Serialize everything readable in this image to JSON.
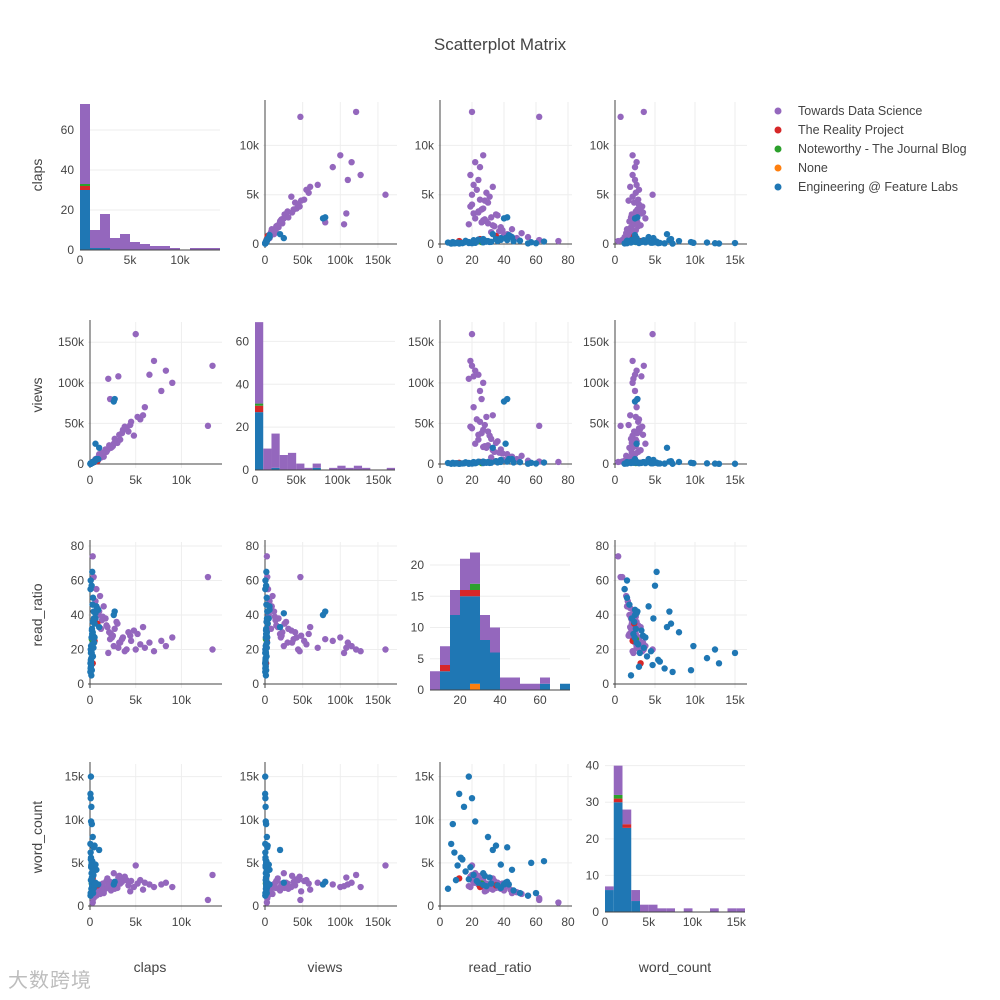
{
  "chart_data": {
    "type": "scatter",
    "title": "Scatterplot Matrix",
    "variables": [
      "claps",
      "views",
      "read_ratio",
      "word_count"
    ],
    "legend_position": "top-right",
    "series": [
      {
        "name": "Towards Data Science",
        "color": "#9467bd"
      },
      {
        "name": "The Reality Project",
        "color": "#d62728"
      },
      {
        "name": "Noteworthy - The Journal Blog",
        "color": "#2ca02c"
      },
      {
        "name": "None",
        "color": "#ff7f0e"
      },
      {
        "name": "Engineering @ Feature Labs",
        "color": "#1f77b4"
      }
    ],
    "axes": {
      "claps": {
        "range": [
          0,
          14000
        ],
        "ticks": [
          0,
          5000,
          10000
        ],
        "tick_labels": [
          "0",
          "5k",
          "10k"
        ]
      },
      "views": {
        "range": [
          0,
          170000
        ],
        "ticks": [
          0,
          50000,
          100000,
          150000
        ],
        "tick_labels": [
          "0",
          "50k",
          "100k",
          "150k"
        ]
      },
      "read_ratio": {
        "range": [
          0,
          80
        ],
        "ticks": [
          0,
          20,
          40,
          60,
          80
        ],
        "tick_labels": [
          "0",
          "20",
          "40",
          "60",
          "80"
        ]
      },
      "word_count": {
        "range": [
          0,
          16000
        ],
        "ticks": [
          0,
          5000,
          10000,
          15000
        ],
        "tick_labels": [
          "0",
          "5k",
          "10k",
          "15k"
        ]
      }
    },
    "histograms": {
      "claps": {
        "ylim": [
          0,
          75
        ],
        "yticks": [
          0,
          20,
          40,
          60
        ],
        "bin_edges": [
          0,
          1000,
          2000,
          3000,
          4000,
          5000,
          6000,
          7000,
          8000,
          9000,
          10000,
          11000,
          12000,
          13000,
          14000
        ],
        "stacks": [
          [
            40,
            2,
            1,
            0,
            30
          ],
          [
            9,
            0,
            0,
            0,
            1
          ],
          [
            17,
            0,
            0,
            0,
            1
          ],
          [
            6,
            0,
            0,
            0,
            0
          ],
          [
            8,
            0,
            0,
            0,
            0
          ],
          [
            4,
            0,
            0,
            0,
            0
          ],
          [
            3,
            0,
            0,
            0,
            0
          ],
          [
            2,
            0,
            0,
            0,
            0
          ],
          [
            2,
            0,
            0,
            0,
            0
          ],
          [
            1,
            0,
            0,
            0,
            0
          ],
          [
            0,
            0,
            0,
            0,
            0
          ],
          [
            1,
            0,
            0,
            0,
            0
          ],
          [
            1,
            0,
            0,
            0,
            0
          ],
          [
            1,
            0,
            0,
            0,
            0
          ]
        ]
      },
      "views": {
        "ylim": [
          0,
          70
        ],
        "yticks": [
          0,
          20,
          40,
          60
        ],
        "bin_edges": [
          0,
          10000,
          20000,
          30000,
          40000,
          50000,
          60000,
          70000,
          80000,
          90000,
          100000,
          110000,
          120000,
          130000,
          140000,
          150000,
          160000,
          170000
        ],
        "stacks": [
          [
            38,
            3,
            1,
            0,
            27
          ],
          [
            10,
            0,
            0,
            0,
            0
          ],
          [
            16,
            0,
            0,
            0,
            1
          ],
          [
            7,
            0,
            0,
            0,
            0
          ],
          [
            8,
            0,
            0,
            0,
            0
          ],
          [
            3,
            0,
            0,
            0,
            0
          ],
          [
            1,
            0,
            0,
            0,
            0
          ],
          [
            2,
            0,
            0,
            0,
            1
          ],
          [
            0,
            0,
            0,
            0,
            0
          ],
          [
            1,
            0,
            0,
            0,
            0
          ],
          [
            2,
            0,
            0,
            0,
            0
          ],
          [
            1,
            0,
            0,
            0,
            0
          ],
          [
            2,
            0,
            0,
            0,
            0
          ],
          [
            1,
            0,
            0,
            0,
            0
          ],
          [
            0,
            0,
            0,
            0,
            0
          ],
          [
            0,
            0,
            0,
            0,
            0
          ],
          [
            1,
            0,
            0,
            0,
            0
          ]
        ]
      },
      "read_ratio": {
        "ylim": [
          0,
          24
        ],
        "yticks": [
          0,
          5,
          10,
          15,
          20
        ],
        "bin_edges": [
          5,
          10,
          15,
          20,
          25,
          30,
          35,
          40,
          45,
          50,
          55,
          60,
          65,
          70,
          75
        ],
        "stacks": [
          [
            3,
            0,
            0,
            0,
            0
          ],
          [
            3,
            1,
            0,
            0,
            3
          ],
          [
            4,
            0,
            0,
            0,
            12
          ],
          [
            5,
            1,
            0,
            0,
            15
          ],
          [
            5,
            1,
            1,
            1,
            14
          ],
          [
            4,
            0,
            0,
            0,
            8
          ],
          [
            4,
            0,
            0,
            0,
            6
          ],
          [
            2,
            0,
            0,
            0,
            0
          ],
          [
            2,
            0,
            0,
            0,
            0
          ],
          [
            1,
            0,
            0,
            0,
            0
          ],
          [
            1,
            0,
            0,
            0,
            0
          ],
          [
            1,
            0,
            0,
            0,
            1
          ],
          [
            0,
            0,
            0,
            0,
            0
          ],
          [
            0,
            0,
            0,
            0,
            1
          ]
        ]
      },
      "word_count": {
        "ylim": [
          0,
          41
        ],
        "yticks": [
          0,
          10,
          20,
          30,
          40
        ],
        "bin_edges": [
          0,
          1000,
          2000,
          3000,
          4000,
          5000,
          6000,
          7000,
          8000,
          9000,
          10000,
          11000,
          12000,
          13000,
          14000,
          15000,
          16000
        ],
        "stacks": [
          [
            1,
            0,
            0,
            0,
            6
          ],
          [
            8,
            1,
            1,
            0,
            30
          ],
          [
            4,
            1,
            0,
            0,
            23
          ],
          [
            3,
            0,
            0,
            0,
            3
          ],
          [
            2,
            0,
            0,
            0,
            0
          ],
          [
            2,
            0,
            0,
            0,
            0
          ],
          [
            1,
            0,
            0,
            0,
            0
          ],
          [
            1,
            0,
            0,
            0,
            0
          ],
          [
            0,
            0,
            0,
            0,
            0
          ],
          [
            1,
            0,
            0,
            0,
            0
          ],
          [
            0,
            0,
            0,
            0,
            0
          ],
          [
            0,
            0,
            0,
            0,
            0
          ],
          [
            1,
            0,
            0,
            0,
            0
          ],
          [
            0,
            0,
            0,
            0,
            0
          ],
          [
            1,
            0,
            0,
            0,
            0
          ],
          [
            1,
            0,
            0,
            0,
            0
          ]
        ]
      }
    },
    "points": [
      [
        1200,
        8000,
        32,
        2400,
        0
      ],
      [
        900,
        5000,
        40,
        1800,
        0
      ],
      [
        2500,
        22000,
        28,
        2600,
        0
      ],
      [
        3000,
        26000,
        35,
        2100,
        0
      ],
      [
        4500,
        52000,
        25,
        2900,
        0
      ],
      [
        5000,
        160000,
        20,
        4700,
        0
      ],
      [
        13400,
        121000,
        20,
        3600,
        0
      ],
      [
        12900,
        47000,
        62,
        700,
        0
      ],
      [
        8300,
        115000,
        22,
        2700,
        0
      ],
      [
        7000,
        127000,
        19,
        2200,
        0
      ],
      [
        6500,
        110000,
        24,
        2500,
        0
      ],
      [
        2000,
        105000,
        18,
        2300,
        0
      ],
      [
        3100,
        108000,
        21,
        3300,
        0
      ],
      [
        2200,
        80000,
        26,
        2800,
        0
      ],
      [
        5800,
        60000,
        33,
        1900,
        0
      ],
      [
        4200,
        40000,
        30,
        2400,
        0
      ],
      [
        3600,
        42000,
        27,
        3100,
        0
      ],
      [
        4800,
        35000,
        31,
        2200,
        0
      ],
      [
        2900,
        28000,
        36,
        2700,
        0
      ],
      [
        1700,
        18000,
        38,
        2000,
        0
      ],
      [
        2300,
        20000,
        29,
        1800,
        0
      ],
      [
        3300,
        30000,
        24,
        2600,
        0
      ],
      [
        1500,
        9000,
        45,
        1500,
        0
      ],
      [
        700,
        4000,
        55,
        1200,
        0
      ],
      [
        400,
        3000,
        62,
        900,
        0
      ],
      [
        300,
        2500,
        74,
        400,
        0
      ],
      [
        1000,
        12000,
        42,
        2300,
        0
      ],
      [
        1800,
        15000,
        34,
        2900,
        0
      ],
      [
        2600,
        25000,
        22,
        3800,
        0
      ],
      [
        3800,
        46000,
        19,
        3400,
        0
      ],
      [
        5500,
        55000,
        23,
        3000,
        0
      ],
      [
        6000,
        70000,
        21,
        2700,
        0
      ],
      [
        600,
        6000,
        48,
        1600,
        0
      ],
      [
        1300,
        14000,
        37,
        2100,
        0
      ],
      [
        2100,
        23000,
        30,
        2500,
        0
      ],
      [
        3500,
        38000,
        26,
        2800,
        0
      ],
      [
        4400,
        48000,
        28,
        1700,
        0
      ],
      [
        7800,
        90000,
        25,
        2500,
        0
      ],
      [
        9000,
        100000,
        27,
        2200,
        0
      ],
      [
        1100,
        10000,
        51,
        1400,
        0
      ],
      [
        1900,
        17000,
        33,
        3200,
        0
      ],
      [
        2700,
        31000,
        32,
        2000,
        0
      ],
      [
        3200,
        36000,
        24,
        3500,
        0
      ],
      [
        800,
        7000,
        44,
        1900,
        0
      ],
      [
        1400,
        13000,
        39,
        2600,
        0
      ],
      [
        2400,
        21000,
        27,
        2300,
        0
      ],
      [
        4000,
        44000,
        20,
        3000,
        0
      ],
      [
        5200,
        58000,
        29,
        2600,
        0
      ],
      [
        300,
        1500,
        12,
        3200,
        1
      ],
      [
        500,
        2500,
        25,
        2200,
        1
      ],
      [
        800,
        3500,
        35,
        2400,
        1
      ],
      [
        200,
        1200,
        26,
        2600,
        2
      ],
      [
        2700,
        80000,
        42,
        2800,
        4
      ],
      [
        2600,
        77000,
        40,
        2500,
        4
      ],
      [
        1000,
        20000,
        33,
        6500,
        4
      ],
      [
        100,
        300,
        18,
        15000,
        4
      ],
      [
        50,
        200,
        12,
        13000,
        4
      ],
      [
        80,
        500,
        20,
        12500,
        4
      ],
      [
        150,
        800,
        15,
        11500,
        4
      ],
      [
        120,
        1000,
        22,
        9800,
        4
      ],
      [
        200,
        1500,
        8,
        9500,
        4
      ],
      [
        300,
        2500,
        30,
        8000,
        4
      ],
      [
        500,
        3500,
        35,
        7000,
        4
      ],
      [
        400,
        3000,
        42,
        6800,
        4
      ],
      [
        250,
        1800,
        65,
        5200,
        4
      ],
      [
        180,
        1500,
        57,
        5000,
        4
      ],
      [
        600,
        5000,
        38,
        4800,
        4
      ],
      [
        700,
        6000,
        45,
        4200,
        4
      ],
      [
        350,
        2200,
        28,
        3500,
        4
      ],
      [
        100,
        1000,
        10,
        3000,
        4
      ],
      [
        150,
        1200,
        5,
        2000,
        4
      ],
      [
        80,
        600,
        60,
        1500,
        4
      ],
      [
        60,
        400,
        55,
        1200,
        4
      ],
      [
        220,
        1600,
        32,
        2600,
        4
      ],
      [
        300,
        2000,
        36,
        2400,
        4
      ],
      [
        450,
        2800,
        24,
        2700,
        4
      ],
      [
        90,
        700,
        14,
        5400,
        4
      ],
      [
        130,
        900,
        19,
        4500,
        4
      ],
      [
        170,
        1100,
        27,
        3800,
        4
      ],
      [
        210,
        1400,
        31,
        3300,
        4
      ],
      [
        260,
        1700,
        23,
        2900,
        4
      ],
      [
        320,
        2100,
        16,
        4000,
        4
      ],
      [
        380,
        2400,
        21,
        3600,
        4
      ],
      [
        420,
        2600,
        38,
        2100,
        4
      ],
      [
        40,
        300,
        7,
        7200,
        4
      ],
      [
        70,
        450,
        9,
        6200,
        4
      ],
      [
        110,
        650,
        13,
        5600,
        4
      ],
      [
        140,
        850,
        11,
        4700,
        4
      ],
      [
        190,
        1300,
        18,
        3100,
        4
      ],
      [
        240,
        1550,
        29,
        2300,
        4
      ],
      [
        280,
        1900,
        46,
        1800,
        4
      ],
      [
        330,
        2300,
        50,
        1500,
        4
      ],
      [
        900,
        6000,
        43,
        2500,
        4
      ],
      [
        600,
        25000,
        41,
        2700,
        4
      ],
      [
        500,
        3000,
        27,
        2450,
        4
      ]
    ]
  },
  "watermark": "大数跨境"
}
